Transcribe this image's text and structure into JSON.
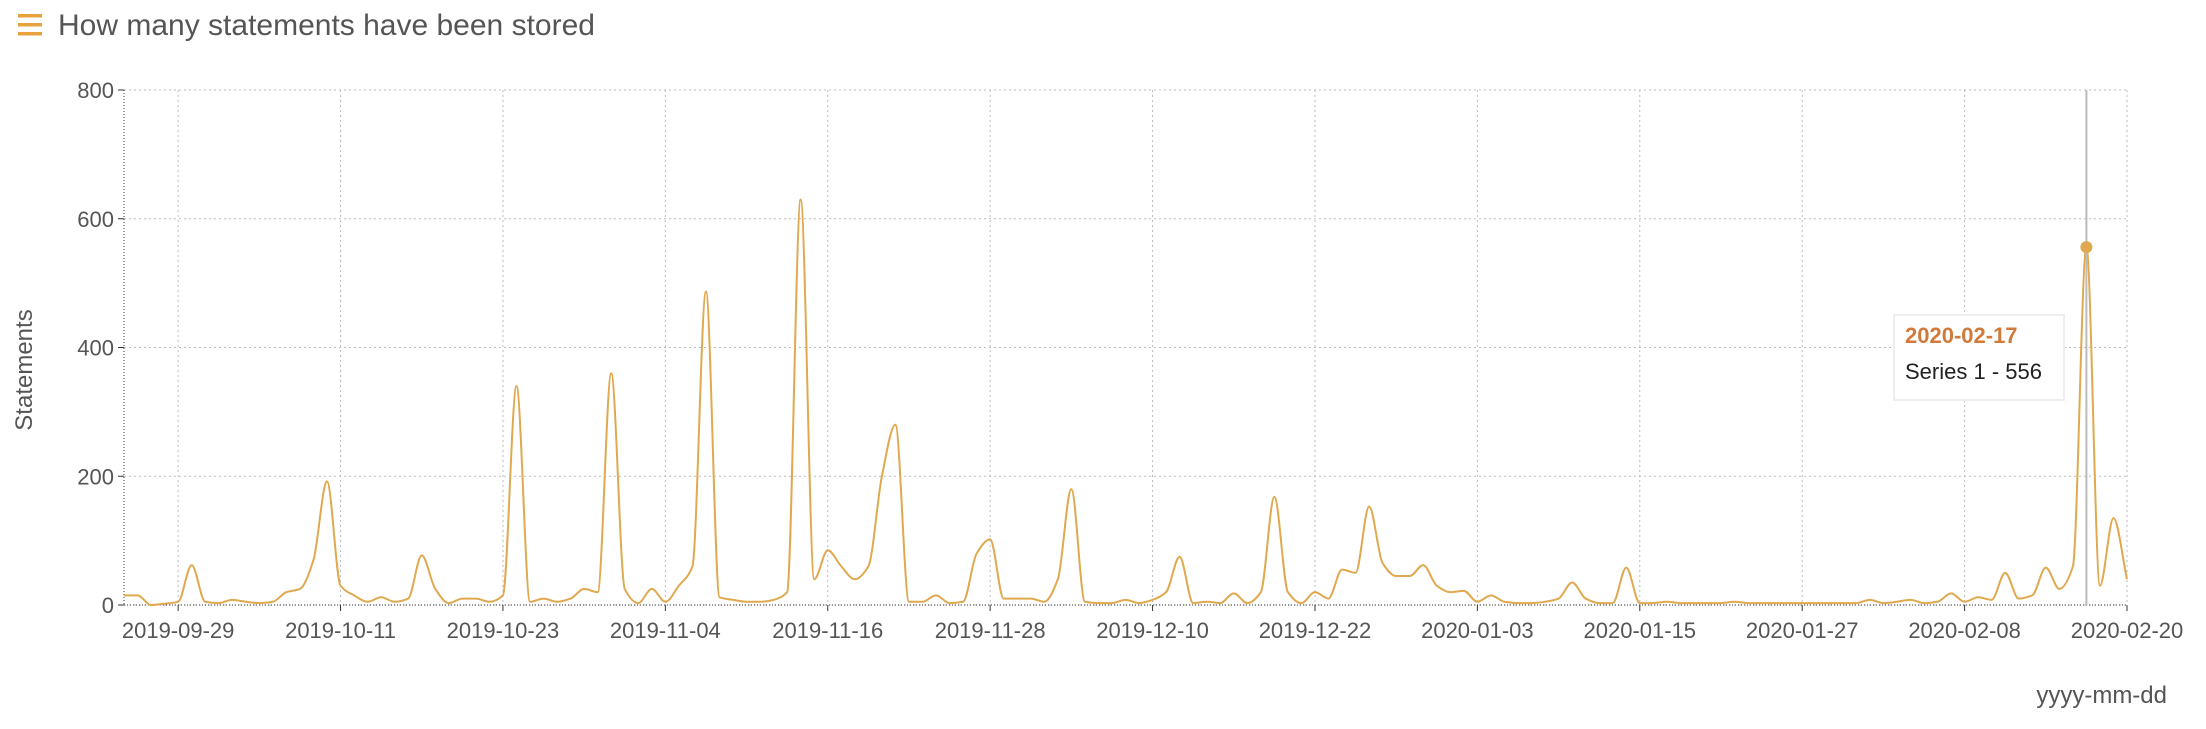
{
  "header": {
    "title": "How many statements have been stored"
  },
  "chart_data": {
    "type": "line",
    "ylabel": "Statements",
    "xlabel": "yyyy-mm-dd",
    "x": [
      "2019-09-25",
      "2019-09-26",
      "2019-09-27",
      "2019-09-28",
      "2019-09-29",
      "2019-09-30",
      "2019-10-01",
      "2019-10-02",
      "2019-10-03",
      "2019-10-04",
      "2019-10-05",
      "2019-10-06",
      "2019-10-07",
      "2019-10-08",
      "2019-10-09",
      "2019-10-10",
      "2019-10-11",
      "2019-10-12",
      "2019-10-13",
      "2019-10-14",
      "2019-10-15",
      "2019-10-16",
      "2019-10-17",
      "2019-10-18",
      "2019-10-19",
      "2019-10-20",
      "2019-10-21",
      "2019-10-22",
      "2019-10-23",
      "2019-10-24",
      "2019-10-25",
      "2019-10-26",
      "2019-10-27",
      "2019-10-28",
      "2019-10-29",
      "2019-10-30",
      "2019-10-31",
      "2019-11-01",
      "2019-11-02",
      "2019-11-03",
      "2019-11-04",
      "2019-11-05",
      "2019-11-06",
      "2019-11-07",
      "2019-11-08",
      "2019-11-09",
      "2019-11-10",
      "2019-11-11",
      "2019-11-12",
      "2019-11-13",
      "2019-11-14",
      "2019-11-15",
      "2019-11-16",
      "2019-11-17",
      "2019-11-18",
      "2019-11-19",
      "2019-11-20",
      "2019-11-21",
      "2019-11-22",
      "2019-11-23",
      "2019-11-24",
      "2019-11-25",
      "2019-11-26",
      "2019-11-27",
      "2019-11-28",
      "2019-11-29",
      "2019-11-30",
      "2019-12-01",
      "2019-12-02",
      "2019-12-03",
      "2019-12-04",
      "2019-12-05",
      "2019-12-06",
      "2019-12-07",
      "2019-12-08",
      "2019-12-09",
      "2019-12-10",
      "2019-12-11",
      "2019-12-12",
      "2019-12-13",
      "2019-12-14",
      "2019-12-15",
      "2019-12-16",
      "2019-12-17",
      "2019-12-18",
      "2019-12-19",
      "2019-12-20",
      "2019-12-21",
      "2019-12-22",
      "2019-12-23",
      "2019-12-24",
      "2019-12-25",
      "2019-12-26",
      "2019-12-27",
      "2019-12-28",
      "2019-12-29",
      "2019-12-30",
      "2019-12-31",
      "2020-01-01",
      "2020-01-02",
      "2020-01-03",
      "2020-01-04",
      "2020-01-05",
      "2020-01-06",
      "2020-01-07",
      "2020-01-08",
      "2020-01-09",
      "2020-01-10",
      "2020-01-11",
      "2020-01-12",
      "2020-01-13",
      "2020-01-14",
      "2020-01-15",
      "2020-01-16",
      "2020-01-17",
      "2020-01-18",
      "2020-01-19",
      "2020-01-20",
      "2020-01-21",
      "2020-01-22",
      "2020-01-23",
      "2020-01-24",
      "2020-01-25",
      "2020-01-26",
      "2020-01-27",
      "2020-01-28",
      "2020-01-29",
      "2020-01-30",
      "2020-01-31",
      "2020-02-01",
      "2020-02-02",
      "2020-02-03",
      "2020-02-04",
      "2020-02-05",
      "2020-02-06",
      "2020-02-07",
      "2020-02-08",
      "2020-02-09",
      "2020-02-10",
      "2020-02-11",
      "2020-02-12",
      "2020-02-13",
      "2020-02-14",
      "2020-02-15",
      "2020-02-16",
      "2020-02-17",
      "2020-02-18",
      "2020-02-19",
      "2020-02-20"
    ],
    "series": [
      {
        "color": "#e0a94f",
        "values": [
          15,
          15,
          0,
          2,
          5,
          62,
          5,
          3,
          8,
          5,
          3,
          5,
          20,
          25,
          70,
          192,
          30,
          15,
          5,
          12,
          5,
          10,
          77,
          25,
          3,
          10,
          10,
          5,
          15,
          340,
          5,
          10,
          5,
          10,
          25,
          20,
          360,
          25,
          3,
          25,
          5,
          30,
          60,
          487,
          12,
          8,
          5,
          5,
          8,
          20,
          630,
          40,
          85,
          60,
          40,
          60,
          200,
          280,
          5,
          5,
          15,
          3,
          5,
          80,
          102,
          10,
          10,
          10,
          5,
          40,
          180,
          5,
          3,
          3,
          8,
          3,
          8,
          20,
          75,
          3,
          5,
          3,
          18,
          3,
          20,
          168,
          20,
          3,
          20,
          10,
          55,
          50,
          153,
          65,
          45,
          45,
          62,
          30,
          20,
          22,
          5,
          15,
          5,
          3,
          3,
          5,
          10,
          35,
          10,
          3,
          3,
          58,
          3,
          3,
          5,
          3,
          3,
          3,
          3,
          5,
          3,
          3,
          3,
          3,
          3,
          3,
          3,
          3,
          3,
          8,
          3,
          5,
          8,
          3,
          5,
          18,
          5,
          12,
          8,
          50,
          10,
          15,
          58,
          25,
          60,
          556,
          30,
          135,
          40
        ]
      }
    ],
    "xlim": [
      "2019-09-25",
      "2020-02-20"
    ],
    "xticks": [
      "2019-09-29",
      "2019-10-11",
      "2019-10-23",
      "2019-11-04",
      "2019-11-16",
      "2019-11-28",
      "2019-12-10",
      "2019-12-22",
      "2020-01-03",
      "2020-01-15",
      "2020-01-27",
      "2020-02-08",
      "2020-02-20"
    ],
    "ylim": [
      0,
      800
    ],
    "yticks": [
      0,
      200,
      400,
      600,
      800
    ],
    "grid": true,
    "tooltip": {
      "date": "2020-02-17",
      "text": "Series 1 - 556"
    }
  }
}
